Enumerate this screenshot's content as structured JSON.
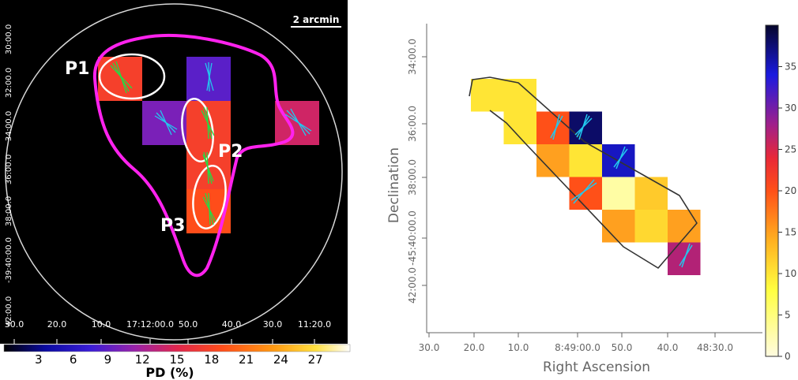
{
  "chart_data": [
    {
      "type": "heatmap",
      "panel": "left",
      "scale_bar_label": "2 arcmin",
      "x_ticks": [
        "30.0",
        "20.0",
        "10.0",
        "17:12:00.0",
        "50.0",
        "40.0",
        "30.0",
        "11:20.0"
      ],
      "y_ticks": [
        "30:00.0",
        "32:00.0",
        "34:00.0",
        "36:00.0",
        "38:00.0",
        "-39:40:00.0",
        "42:00.0"
      ],
      "region_labels": [
        "P1",
        "P2",
        "P3"
      ],
      "colorbar": {
        "label": "PD (%)",
        "ticks": [
          3,
          6,
          9,
          12,
          15,
          18,
          21,
          24,
          27
        ],
        "range": [
          0,
          30
        ]
      },
      "cells": [
        {
          "col": 0,
          "row": 0,
          "pd": 17
        },
        {
          "col": 2,
          "row": 0,
          "pd": 9
        },
        {
          "col": 1,
          "row": 1,
          "pd": 10
        },
        {
          "col": 2,
          "row": 1,
          "pd": 17
        },
        {
          "col": 4,
          "row": 1,
          "pd": 14
        },
        {
          "col": 2,
          "row": 2,
          "pd": 17
        },
        {
          "col": 2,
          "row": 3,
          "pd": 18
        }
      ]
    },
    {
      "type": "heatmap",
      "panel": "right",
      "xlabel": "Right Ascension",
      "ylabel": "Declination",
      "x_ticks": [
        "30.0",
        "20.0",
        "10.0",
        "8:49:00.0",
        "50.0",
        "40.0",
        "48:30.0"
      ],
      "y_ticks": [
        "34:00.0",
        "36:00.0",
        "38:00.0",
        "-45:40:00.0",
        "42:00.0"
      ],
      "colorbar": {
        "ticks": [
          0,
          5,
          10,
          15,
          20,
          25,
          30,
          35
        ],
        "range": [
          0,
          40
        ]
      },
      "cells": [
        {
          "col": 0,
          "row": 0,
          "pd": 10
        },
        {
          "col": 1,
          "row": 0,
          "pd": 10
        },
        {
          "col": 1,
          "row": 1,
          "pd": 10
        },
        {
          "col": 2,
          "row": 1,
          "pd": 20
        },
        {
          "col": 3,
          "row": 1,
          "pd": 38
        },
        {
          "col": 2,
          "row": 2,
          "pd": 15
        },
        {
          "col": 3,
          "row": 2,
          "pd": 10
        },
        {
          "col": 4,
          "row": 2,
          "pd": 35
        },
        {
          "col": 3,
          "row": 3,
          "pd": 20
        },
        {
          "col": 4,
          "row": 3,
          "pd": 3
        },
        {
          "col": 5,
          "row": 3,
          "pd": 12
        },
        {
          "col": 4,
          "row": 4,
          "pd": 15
        },
        {
          "col": 5,
          "row": 4,
          "pd": 11
        },
        {
          "col": 6,
          "row": 4,
          "pd": 15
        },
        {
          "col": 6,
          "row": 5,
          "pd": 27
        }
      ]
    }
  ]
}
